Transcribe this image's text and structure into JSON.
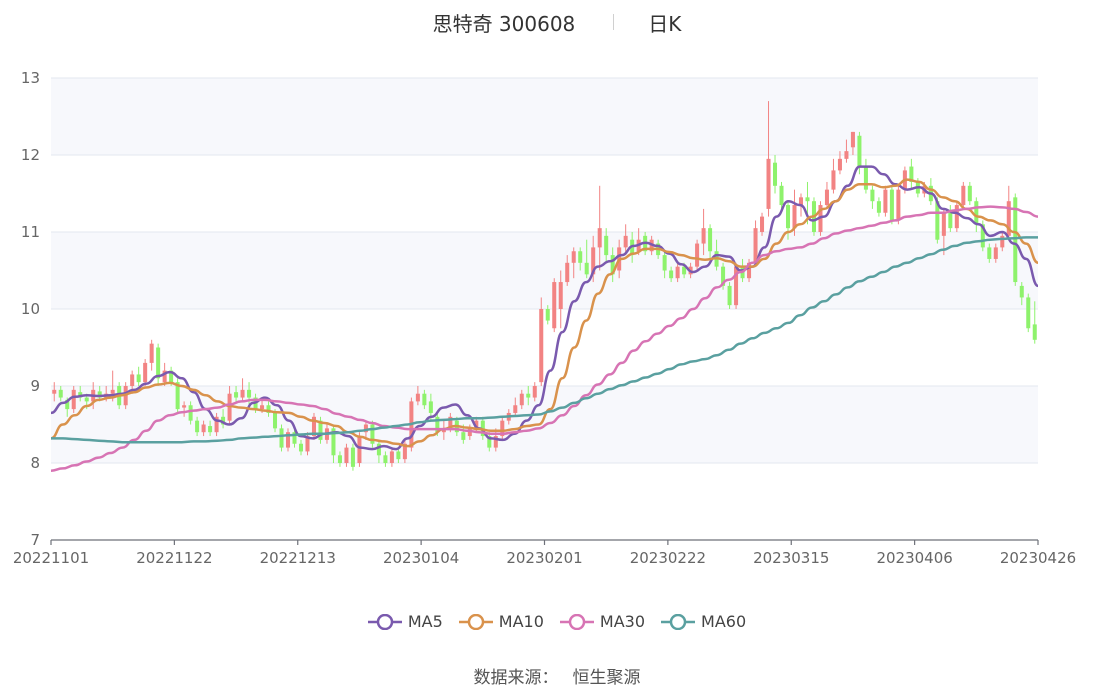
{
  "title": {
    "stock": "思特奇 300608",
    "period": "日K"
  },
  "source": {
    "label": "数据来源：",
    "value": "恒生聚源"
  },
  "colors": {
    "up": "#f28383",
    "down": "#8ef26c",
    "ma5": "#7a5aae",
    "ma10": "#d9924c",
    "ma30": "#d774b4",
    "ma60": "#5aa0a0",
    "grid": "#e3e7ef",
    "band": "#f7f8fc"
  },
  "chart_data": {
    "type": "candlestick",
    "title": "思特奇 300608",
    "subtitle": "日K",
    "ylim": [
      7,
      13
    ],
    "yticks": [
      7,
      8,
      9,
      10,
      11,
      12,
      13
    ],
    "xtick_labels": [
      "20221101",
      "20221122",
      "20221213",
      "20230104",
      "20230201",
      "20230222",
      "20230315",
      "20230406",
      "20230426"
    ],
    "grid": true,
    "legend_position": "bottom-center",
    "candles": [
      [
        8.9,
        8.95,
        8.8,
        9.05
      ],
      [
        8.95,
        8.85,
        8.8,
        9.0
      ],
      [
        8.82,
        8.7,
        8.6,
        8.85
      ],
      [
        8.7,
        8.95,
        8.65,
        9.0
      ],
      [
        8.92,
        8.85,
        8.8,
        9.0
      ],
      [
        8.85,
        8.8,
        8.7,
        8.9
      ],
      [
        8.8,
        8.95,
        8.7,
        9.05
      ],
      [
        8.93,
        8.85,
        8.8,
        9.0
      ],
      [
        8.85,
        8.9,
        8.8,
        9.0
      ],
      [
        8.9,
        8.95,
        8.8,
        9.2
      ],
      [
        9.0,
        8.75,
        8.7,
        9.05
      ],
      [
        8.75,
        9.0,
        8.7,
        9.05
      ],
      [
        9.0,
        9.15,
        8.9,
        9.2
      ],
      [
        9.15,
        9.05,
        9.0,
        9.25
      ],
      [
        9.05,
        9.3,
        9.0,
        9.35
      ],
      [
        9.3,
        9.55,
        9.2,
        9.6
      ],
      [
        9.5,
        9.1,
        9.0,
        9.55
      ],
      [
        9.05,
        9.2,
        9.0,
        9.3
      ],
      [
        9.2,
        9.05,
        9.0,
        9.25
      ],
      [
        9.05,
        8.7,
        8.65,
        9.1
      ],
      [
        8.72,
        8.75,
        8.6,
        8.8
      ],
      [
        8.75,
        8.55,
        8.5,
        8.8
      ],
      [
        8.55,
        8.4,
        8.35,
        8.6
      ],
      [
        8.4,
        8.5,
        8.35,
        8.55
      ],
      [
        8.48,
        8.4,
        8.35,
        8.55
      ],
      [
        8.4,
        8.6,
        8.35,
        8.65
      ],
      [
        8.6,
        8.5,
        8.45,
        8.7
      ],
      [
        8.55,
        8.9,
        8.5,
        9.0
      ],
      [
        8.92,
        8.85,
        8.8,
        9.0
      ],
      [
        8.85,
        8.95,
        8.8,
        9.1
      ],
      [
        8.95,
        8.85,
        8.75,
        9.05
      ],
      [
        8.85,
        8.7,
        8.65,
        8.9
      ],
      [
        8.7,
        8.75,
        8.65,
        8.85
      ],
      [
        8.75,
        8.65,
        8.6,
        8.8
      ],
      [
        8.65,
        8.45,
        8.4,
        8.7
      ],
      [
        8.45,
        8.2,
        8.15,
        8.5
      ],
      [
        8.2,
        8.4,
        8.15,
        8.45
      ],
      [
        8.4,
        8.25,
        8.2,
        8.45
      ],
      [
        8.25,
        8.15,
        8.1,
        8.3
      ],
      [
        8.15,
        8.35,
        8.1,
        8.4
      ],
      [
        8.35,
        8.6,
        8.3,
        8.65
      ],
      [
        8.55,
        8.3,
        8.25,
        8.6
      ],
      [
        8.3,
        8.45,
        8.25,
        8.5
      ],
      [
        8.45,
        8.1,
        8.0,
        8.5
      ],
      [
        8.1,
        8.0,
        7.95,
        8.15
      ],
      [
        8.0,
        8.2,
        7.95,
        8.25
      ],
      [
        8.2,
        7.95,
        7.9,
        8.25
      ],
      [
        8.0,
        8.35,
        7.95,
        8.4
      ],
      [
        8.4,
        8.5,
        8.3,
        8.55
      ],
      [
        8.5,
        8.25,
        8.2,
        8.55
      ],
      [
        8.25,
        8.1,
        8.0,
        8.3
      ],
      [
        8.1,
        8.0,
        7.95,
        8.15
      ],
      [
        8.0,
        8.15,
        7.95,
        8.2
      ],
      [
        8.15,
        8.05,
        8.0,
        8.2
      ],
      [
        8.05,
        8.25,
        8.0,
        8.3
      ],
      [
        8.2,
        8.8,
        8.15,
        8.85
      ],
      [
        8.8,
        8.9,
        8.75,
        9.0
      ],
      [
        8.9,
        8.75,
        8.7,
        8.95
      ],
      [
        8.8,
        8.65,
        8.55,
        8.9
      ],
      [
        8.6,
        8.4,
        8.35,
        8.65
      ],
      [
        8.4,
        8.45,
        8.3,
        8.55
      ],
      [
        8.45,
        8.6,
        8.4,
        8.65
      ],
      [
        8.55,
        8.4,
        8.35,
        8.6
      ],
      [
        8.4,
        8.3,
        8.25,
        8.5
      ],
      [
        8.35,
        8.45,
        8.3,
        8.5
      ],
      [
        8.45,
        8.55,
        8.4,
        8.6
      ],
      [
        8.55,
        8.35,
        8.3,
        8.6
      ],
      [
        8.35,
        8.2,
        8.15,
        8.4
      ],
      [
        8.2,
        8.35,
        8.15,
        8.45
      ],
      [
        8.35,
        8.55,
        8.3,
        8.6
      ],
      [
        8.55,
        8.65,
        8.5,
        8.7
      ],
      [
        8.65,
        8.75,
        8.6,
        8.85
      ],
      [
        8.75,
        8.9,
        8.7,
        8.95
      ],
      [
        8.9,
        8.85,
        8.75,
        9.0
      ],
      [
        8.85,
        9.0,
        8.8,
        9.05
      ],
      [
        9.05,
        10.0,
        9.0,
        10.15
      ],
      [
        10.0,
        9.85,
        9.8,
        10.05
      ],
      [
        9.75,
        10.35,
        9.7,
        10.4
      ],
      [
        10.0,
        10.35,
        9.75,
        10.5
      ],
      [
        10.35,
        10.6,
        10.3,
        10.7
      ],
      [
        10.6,
        10.75,
        10.4,
        10.8
      ],
      [
        10.75,
        10.6,
        10.5,
        10.8
      ],
      [
        10.6,
        10.45,
        10.4,
        10.9
      ],
      [
        10.45,
        10.8,
        10.35,
        10.95
      ],
      [
        10.8,
        11.05,
        10.5,
        11.6
      ],
      [
        10.95,
        10.7,
        10.6,
        11.05
      ],
      [
        10.7,
        10.45,
        10.35,
        10.8
      ],
      [
        10.5,
        10.8,
        10.4,
        10.9
      ],
      [
        10.8,
        10.95,
        10.7,
        11.1
      ],
      [
        10.9,
        10.7,
        10.6,
        11.0
      ],
      [
        10.75,
        10.9,
        10.7,
        11.05
      ],
      [
        10.95,
        10.75,
        10.7,
        11.0
      ],
      [
        10.75,
        10.9,
        10.7,
        10.95
      ],
      [
        10.85,
        10.7,
        10.65,
        10.9
      ],
      [
        10.7,
        10.5,
        10.4,
        10.75
      ],
      [
        10.5,
        10.4,
        10.35,
        10.55
      ],
      [
        10.4,
        10.55,
        10.35,
        10.6
      ],
      [
        10.55,
        10.45,
        10.4,
        10.6
      ],
      [
        10.45,
        10.55,
        10.4,
        10.6
      ],
      [
        10.55,
        10.85,
        10.5,
        10.9
      ],
      [
        10.85,
        11.05,
        10.7,
        11.3
      ],
      [
        11.05,
        10.75,
        10.6,
        11.1
      ],
      [
        10.75,
        10.55,
        10.5,
        10.9
      ],
      [
        10.55,
        10.3,
        10.25,
        10.6
      ],
      [
        10.3,
        10.05,
        10.0,
        10.35
      ],
      [
        10.05,
        10.55,
        10.0,
        10.6
      ],
      [
        10.55,
        10.4,
        10.35,
        10.65
      ],
      [
        10.4,
        10.6,
        10.35,
        10.65
      ],
      [
        10.6,
        11.05,
        10.55,
        11.15
      ],
      [
        11.0,
        11.2,
        10.95,
        11.25
      ],
      [
        11.3,
        11.95,
        11.2,
        12.7
      ],
      [
        11.9,
        11.6,
        11.5,
        12.0
      ],
      [
        11.6,
        11.35,
        11.3,
        11.65
      ],
      [
        11.35,
        11.05,
        10.9,
        11.4
      ],
      [
        11.05,
        11.35,
        10.95,
        11.55
      ],
      [
        11.35,
        11.45,
        11.2,
        11.5
      ],
      [
        11.45,
        11.4,
        11.1,
        11.65
      ],
      [
        11.4,
        11.0,
        10.95,
        11.45
      ],
      [
        11.0,
        11.35,
        10.95,
        11.4
      ],
      [
        11.35,
        11.55,
        11.3,
        11.65
      ],
      [
        11.55,
        11.8,
        11.5,
        11.95
      ],
      [
        11.8,
        11.95,
        11.75,
        12.05
      ],
      [
        11.95,
        12.05,
        11.9,
        12.2
      ],
      [
        12.1,
        12.3,
        12.0,
        12.3
      ],
      [
        12.25,
        11.85,
        11.75,
        12.3
      ],
      [
        11.85,
        11.55,
        11.5,
        11.95
      ],
      [
        11.55,
        11.4,
        11.3,
        11.6
      ],
      [
        11.4,
        11.25,
        11.2,
        11.45
      ],
      [
        11.25,
        11.55,
        11.2,
        11.6
      ],
      [
        11.55,
        11.15,
        11.1,
        11.6
      ],
      [
        11.15,
        11.55,
        11.1,
        11.6
      ],
      [
        11.55,
        11.8,
        11.5,
        11.85
      ],
      [
        11.85,
        11.65,
        11.55,
        11.95
      ],
      [
        11.65,
        11.5,
        11.45,
        11.7
      ],
      [
        11.5,
        11.6,
        11.45,
        11.65
      ],
      [
        11.6,
        11.4,
        11.35,
        11.7
      ],
      [
        11.4,
        10.9,
        10.85,
        11.45
      ],
      [
        10.95,
        11.25,
        10.7,
        11.3
      ],
      [
        11.25,
        11.05,
        11.0,
        11.35
      ],
      [
        11.05,
        11.35,
        11.0,
        11.4
      ],
      [
        11.35,
        11.6,
        11.3,
        11.65
      ],
      [
        11.6,
        11.4,
        11.35,
        11.65
      ],
      [
        11.4,
        11.1,
        11.0,
        11.45
      ],
      [
        11.1,
        10.8,
        10.75,
        11.15
      ],
      [
        10.8,
        10.65,
        10.6,
        10.85
      ],
      [
        10.65,
        10.8,
        10.6,
        10.85
      ],
      [
        10.8,
        10.95,
        10.75,
        11.0
      ],
      [
        10.95,
        11.4,
        10.9,
        11.6
      ],
      [
        11.45,
        10.35,
        10.3,
        11.5
      ],
      [
        10.3,
        10.15,
        10.05,
        10.35
      ],
      [
        10.15,
        9.75,
        9.7,
        10.2
      ],
      [
        9.8,
        9.6,
        9.55,
        10.1
      ]
    ],
    "series": [
      {
        "name": "MA5",
        "values": [
          8.65,
          8.78,
          8.86,
          8.88,
          8.87,
          8.88,
          8.9,
          8.95,
          9.03,
          9.13,
          9.18,
          9.1,
          8.92,
          8.7,
          8.55,
          8.5,
          8.58,
          8.78,
          8.85,
          8.75,
          8.55,
          8.35,
          8.32,
          8.38,
          8.4,
          8.35,
          8.2,
          8.18,
          8.22,
          8.18,
          8.32,
          8.48,
          8.6,
          8.72,
          8.76,
          8.62,
          8.45,
          8.32,
          8.3,
          8.38,
          8.55,
          8.75,
          9.2,
          9.7,
          10.1,
          10.35,
          10.55,
          10.62,
          10.7,
          10.82,
          10.86,
          10.82,
          10.72,
          10.58,
          10.48,
          10.55,
          10.7,
          10.68,
          10.5,
          10.55,
          10.8,
          11.2,
          11.4,
          11.35,
          11.15,
          11.2,
          11.4,
          11.6,
          11.85,
          11.85,
          11.75,
          11.62,
          11.55,
          11.58,
          11.5,
          11.3,
          11.25,
          11.18,
          11.1,
          10.95,
          11.0,
          10.85,
          10.65,
          10.3
        ]
      },
      {
        "name": "MA10",
        "values": [
          8.32,
          8.5,
          8.62,
          8.74,
          8.82,
          8.85,
          8.88,
          8.92,
          8.98,
          9.02,
          9.04,
          9.0,
          8.95,
          8.88,
          8.8,
          8.74,
          8.72,
          8.7,
          8.68,
          8.66,
          8.65,
          8.6,
          8.55,
          8.52,
          8.48,
          8.4,
          8.34,
          8.3,
          8.28,
          8.25,
          8.22,
          8.28,
          8.36,
          8.44,
          8.48,
          8.46,
          8.44,
          8.42,
          8.42,
          8.44,
          8.48,
          8.5,
          8.7,
          9.1,
          9.5,
          9.85,
          10.2,
          10.45,
          10.65,
          10.72,
          10.78,
          10.78,
          10.74,
          10.7,
          10.66,
          10.64,
          10.66,
          10.62,
          10.55,
          10.55,
          10.65,
          10.85,
          11.0,
          11.1,
          11.2,
          11.3,
          11.4,
          11.55,
          11.62,
          11.62,
          11.58,
          11.6,
          11.68,
          11.65,
          11.55,
          11.45,
          11.4,
          11.3,
          11.2,
          11.15,
          11.1,
          11.0,
          10.85,
          10.6
        ]
      },
      {
        "name": "MA30",
        "values": [
          7.9,
          7.93,
          7.97,
          8.02,
          8.07,
          8.13,
          8.2,
          8.3,
          8.42,
          8.55,
          8.62,
          8.66,
          8.68,
          8.7,
          8.72,
          8.76,
          8.8,
          8.82,
          8.82,
          8.8,
          8.78,
          8.76,
          8.74,
          8.7,
          8.64,
          8.6,
          8.56,
          8.52,
          8.48,
          8.46,
          8.44,
          8.44,
          8.44,
          8.44,
          8.44,
          8.42,
          8.4,
          8.38,
          8.38,
          8.4,
          8.42,
          8.45,
          8.52,
          8.62,
          8.74,
          8.88,
          9.02,
          9.15,
          9.3,
          9.46,
          9.58,
          9.68,
          9.78,
          9.88,
          10.0,
          10.14,
          10.28,
          10.38,
          10.48,
          10.6,
          10.7,
          10.75,
          10.78,
          10.8,
          10.85,
          10.92,
          10.98,
          11.02,
          11.05,
          11.08,
          11.12,
          11.15,
          11.2,
          11.22,
          11.25,
          11.25,
          11.28,
          11.3,
          11.32,
          11.33,
          11.32,
          11.3,
          11.26,
          11.2
        ]
      },
      {
        "name": "MA60",
        "values": [
          8.32,
          8.32,
          8.31,
          8.3,
          8.29,
          8.28,
          8.27,
          8.27,
          8.27,
          8.27,
          8.27,
          8.27,
          8.28,
          8.28,
          8.29,
          8.3,
          8.32,
          8.33,
          8.34,
          8.35,
          8.36,
          8.37,
          8.38,
          8.38,
          8.39,
          8.4,
          8.42,
          8.44,
          8.46,
          8.48,
          8.5,
          8.53,
          8.55,
          8.56,
          8.57,
          8.58,
          8.58,
          8.59,
          8.6,
          8.61,
          8.62,
          8.63,
          8.67,
          8.72,
          8.78,
          8.84,
          8.9,
          8.96,
          9.01,
          9.06,
          9.11,
          9.16,
          9.22,
          9.28,
          9.32,
          9.35,
          9.4,
          9.47,
          9.55,
          9.62,
          9.69,
          9.75,
          9.82,
          9.92,
          10.02,
          10.1,
          10.19,
          10.28,
          10.36,
          10.42,
          10.48,
          10.55,
          10.6,
          10.66,
          10.71,
          10.77,
          10.82,
          10.86,
          10.88,
          10.9,
          10.91,
          10.92,
          10.93,
          10.93
        ]
      }
    ]
  }
}
